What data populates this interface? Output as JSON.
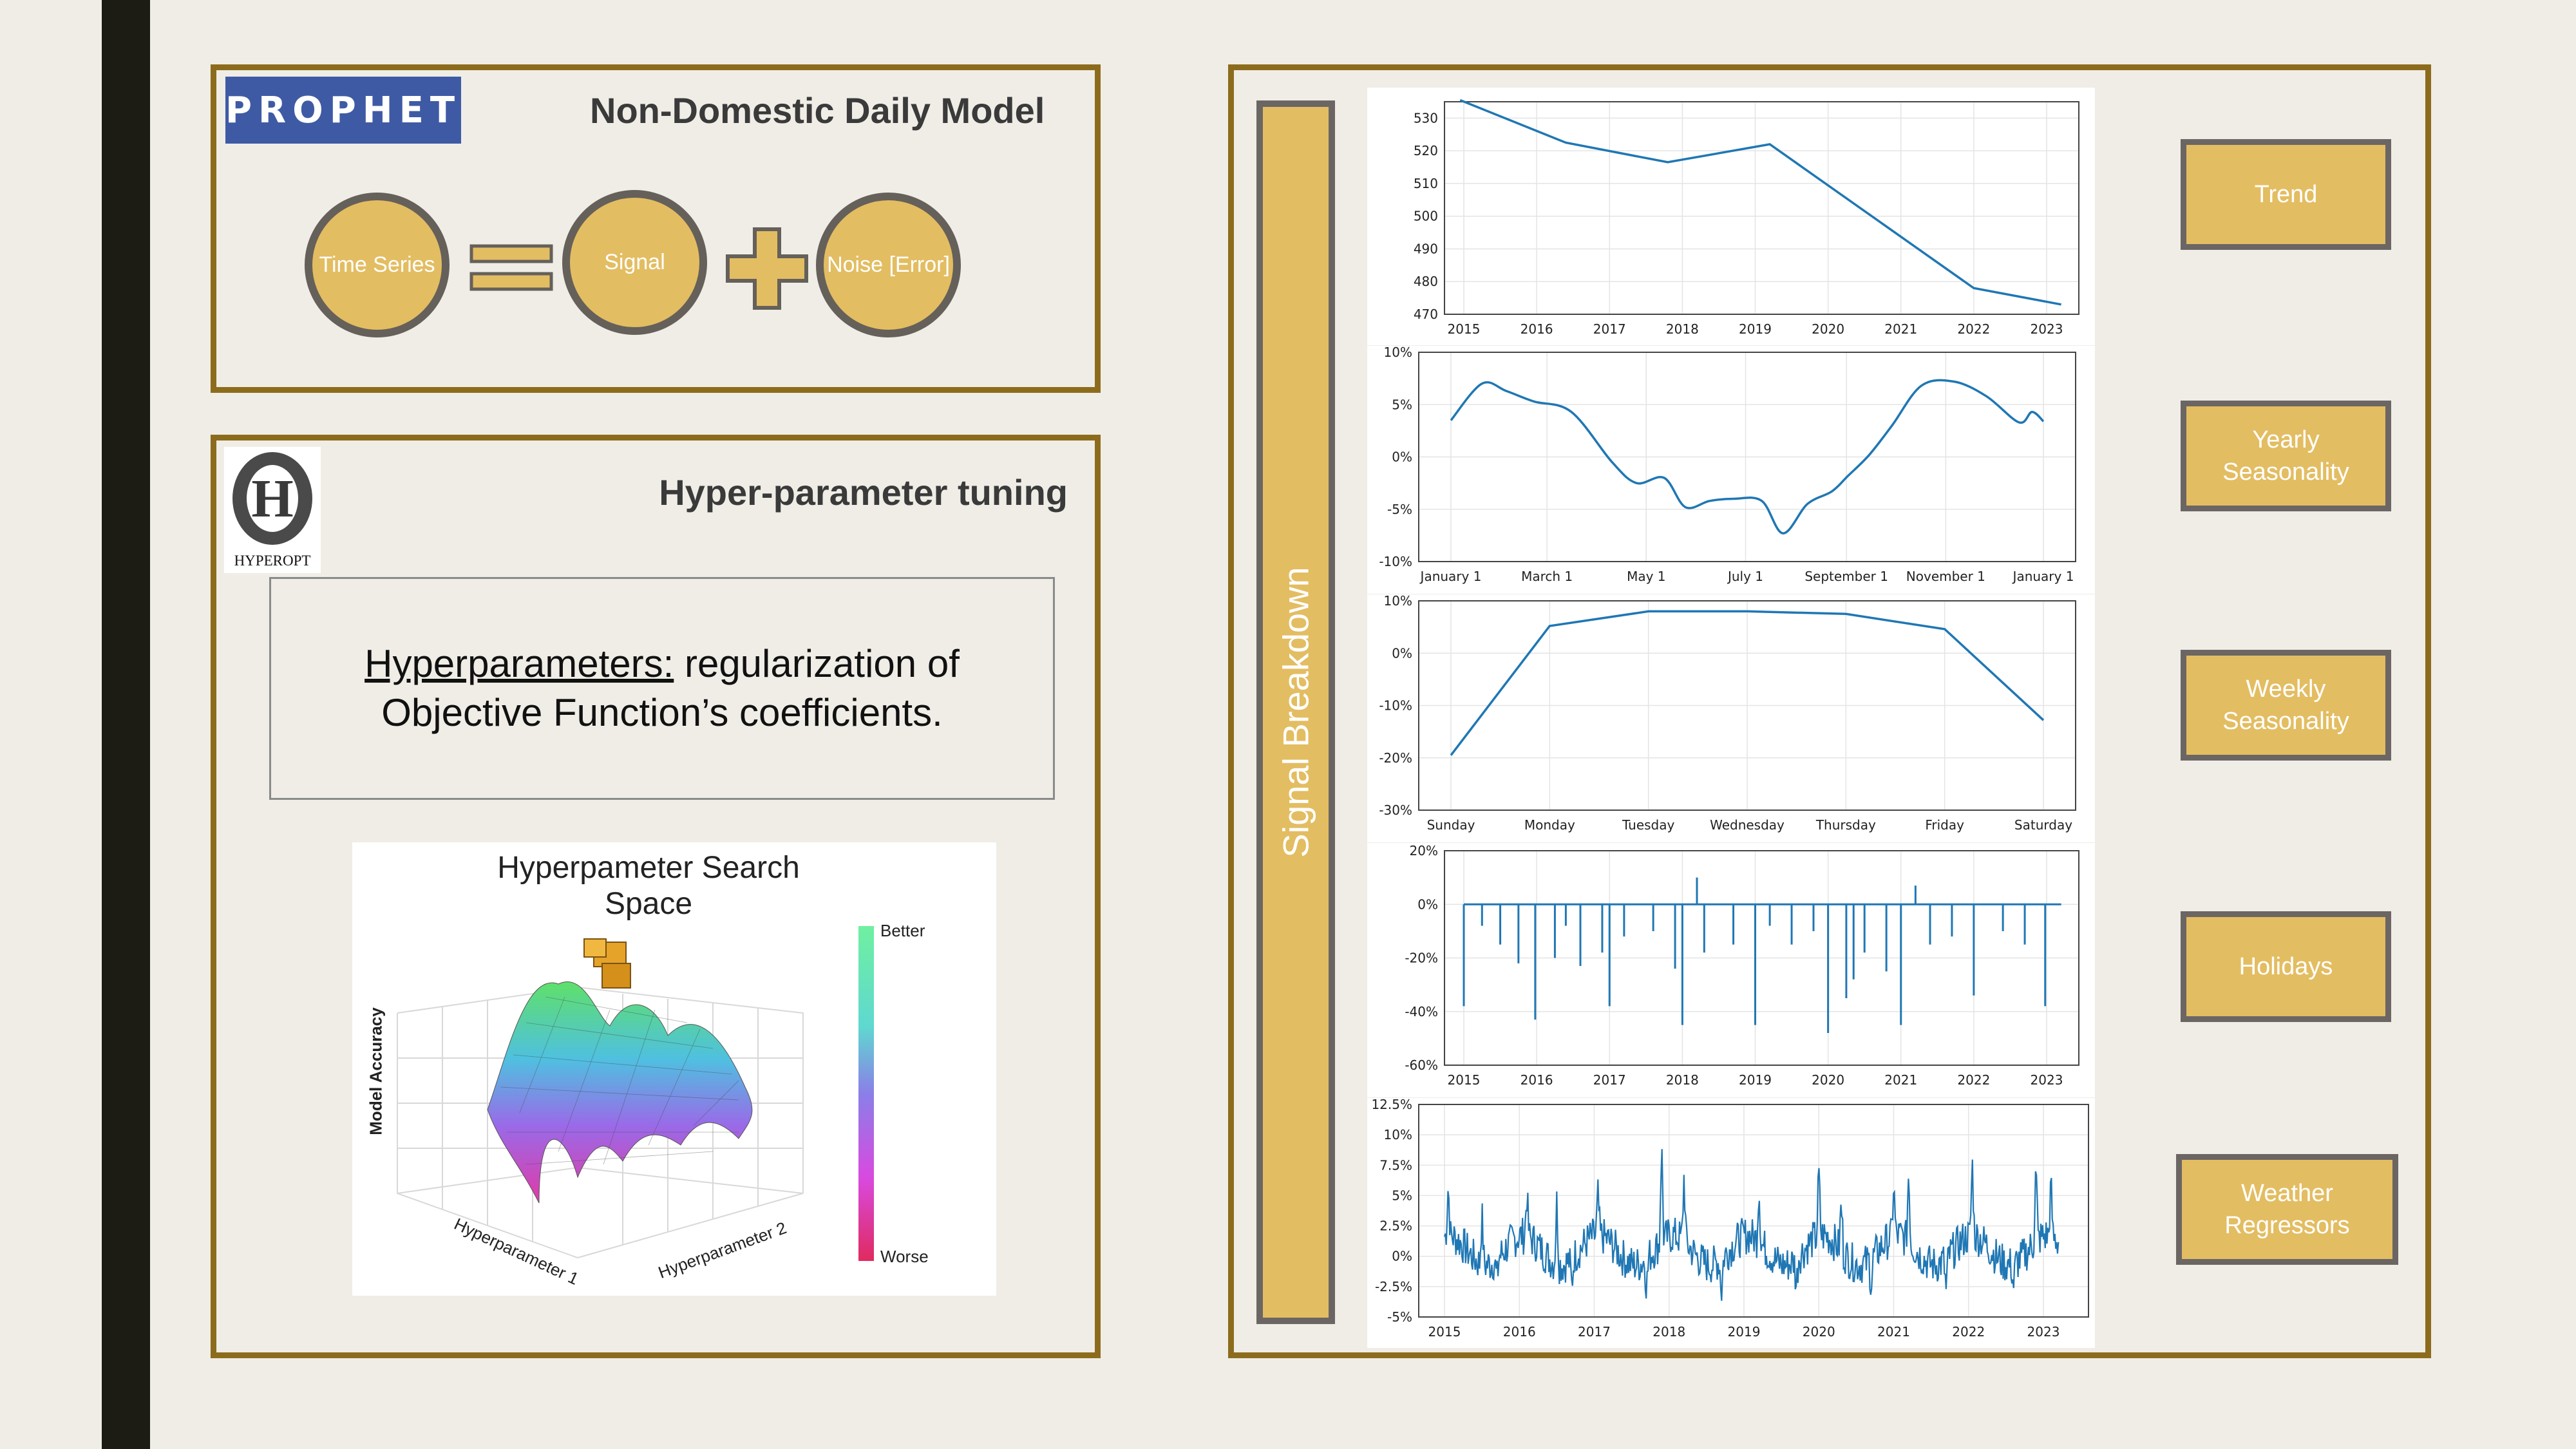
{
  "prophet_panel": {
    "logo_text": "PROPHET",
    "title": "Non-Domestic Daily Model",
    "circles": {
      "time_series": "Time Series",
      "signal": "Signal",
      "noise": "Noise [Error]"
    }
  },
  "hyperopt_panel": {
    "logo_letter": "H",
    "logo_text": "HYPEROPT",
    "title": "Hyper-parameter tuning",
    "definition_term": "Hyperparameters:",
    "definition_text": " regularization of Objective Function’s coefficients.",
    "search_space": {
      "title": "Hyperpameter Search Space",
      "z_axis_label": "Model Accuracy",
      "x_axis_label": "Hyperparameter 1",
      "y_axis_label": "Hyperparameter 2",
      "colorbar_top": "Better",
      "colorbar_bottom": "Worse"
    }
  },
  "signal_panel": {
    "bar_label": "Signal Breakdown",
    "components": [
      "Trend",
      "Yearly Seasonality",
      "Weekly Seasonality",
      "Holidays",
      "Weather Regressors"
    ]
  },
  "colors": {
    "accent_gold": "#e3bd62",
    "frame_brown": "#8c6c1c",
    "border_gray": "#6b6663",
    "prophet_blue": "#3f5aa5",
    "plot_line": "#1f77b4"
  },
  "chart_data": [
    {
      "type": "line",
      "name_in_ui": "Trend",
      "x_ticks": [
        "2015",
        "2016",
        "2017",
        "2018",
        "2019",
        "2020",
        "2021",
        "2022",
        "2023"
      ],
      "y_ticks": [
        "470",
        "480",
        "490",
        "500",
        "510",
        "520",
        "530"
      ],
      "ylim": [
        470,
        535
      ],
      "x": [
        2014.95,
        2016.4,
        2017.8,
        2019.2,
        2022.0,
        2023.2
      ],
      "y": [
        535.5,
        522.5,
        516.5,
        522,
        478,
        473
      ]
    },
    {
      "type": "line",
      "name_in_ui": "Yearly Seasonality",
      "x_ticks": [
        "January 1",
        "March 1",
        "May 1",
        "July 1",
        "September 1",
        "November 1",
        "January 1"
      ],
      "y_ticks": [
        "-10%",
        "-5%",
        "0%",
        "5%",
        "10%"
      ],
      "ylim": [
        -10,
        10
      ],
      "x_day_of_year": [
        1,
        20,
        35,
        52,
        75,
        100,
        115,
        132,
        145,
        160,
        175,
        192,
        205,
        220,
        235,
        245,
        258,
        272,
        290,
        310,
        330,
        350,
        358,
        365
      ],
      "y_percent": [
        3.5,
        7,
        6.3,
        5.3,
        4.3,
        -0.5,
        -2.5,
        -2,
        -4.8,
        -4.2,
        -4,
        -4.2,
        -7.3,
        -4.5,
        -3.3,
        -1.8,
        0.2,
        3,
        6.8,
        7.2,
        5.8,
        3.3,
        4.3,
        3.4
      ]
    },
    {
      "type": "line",
      "name_in_ui": "Weekly Seasonality",
      "x_ticks": [
        "Sunday",
        "Monday",
        "Tuesday",
        "Wednesday",
        "Thursday",
        "Friday",
        "Saturday"
      ],
      "y_ticks": [
        "-30%",
        "-20%",
        "-10%",
        "0%",
        "10%"
      ],
      "ylim": [
        -30,
        10
      ],
      "x": [
        0,
        1,
        2,
        3,
        4,
        5,
        6
      ],
      "y_percent": [
        -19.5,
        5.2,
        8,
        8,
        7.5,
        4.6,
        -12.8
      ]
    },
    {
      "type": "line",
      "name_in_ui": "Holidays",
      "x_ticks": [
        "2015",
        "2016",
        "2017",
        "2018",
        "2019",
        "2020",
        "2021",
        "2022",
        "2023"
      ],
      "y_ticks": [
        "-60%",
        "-40%",
        "-20%",
        "0%",
        "20%"
      ],
      "ylim": [
        -60,
        20
      ],
      "baseline_percent": 0,
      "spikes": [
        {
          "x": 2015.0,
          "y": -38
        },
        {
          "x": 2015.25,
          "y": -8
        },
        {
          "x": 2015.5,
          "y": -15
        },
        {
          "x": 2015.75,
          "y": -22
        },
        {
          "x": 2015.98,
          "y": -43
        },
        {
          "x": 2016.25,
          "y": -20
        },
        {
          "x": 2016.4,
          "y": -8
        },
        {
          "x": 2016.6,
          "y": -23
        },
        {
          "x": 2016.9,
          "y": -18
        },
        {
          "x": 2017.0,
          "y": -38
        },
        {
          "x": 2017.2,
          "y": -12
        },
        {
          "x": 2017.6,
          "y": -10
        },
        {
          "x": 2017.9,
          "y": -24
        },
        {
          "x": 2018.0,
          "y": -45
        },
        {
          "x": 2018.2,
          "y": 10
        },
        {
          "x": 2018.3,
          "y": -18
        },
        {
          "x": 2018.7,
          "y": -15
        },
        {
          "x": 2019.0,
          "y": -45
        },
        {
          "x": 2019.2,
          "y": -8
        },
        {
          "x": 2019.5,
          "y": -15
        },
        {
          "x": 2019.8,
          "y": -10
        },
        {
          "x": 2020.0,
          "y": -48
        },
        {
          "x": 2020.25,
          "y": -35
        },
        {
          "x": 2020.35,
          "y": -28
        },
        {
          "x": 2020.5,
          "y": -18
        },
        {
          "x": 2020.8,
          "y": -25
        },
        {
          "x": 2021.0,
          "y": -45
        },
        {
          "x": 2021.2,
          "y": 7
        },
        {
          "x": 2021.4,
          "y": -15
        },
        {
          "x": 2021.7,
          "y": -12
        },
        {
          "x": 2022.0,
          "y": -34
        },
        {
          "x": 2022.4,
          "y": -10
        },
        {
          "x": 2022.7,
          "y": -15
        },
        {
          "x": 2022.98,
          "y": -38
        }
      ]
    },
    {
      "type": "line",
      "name_in_ui": "Weather Regressors",
      "x_ticks": [
        "2015",
        "2016",
        "2017",
        "2018",
        "2019",
        "2020",
        "2021",
        "2022",
        "2023"
      ],
      "y_ticks": [
        "-5%",
        "-2.5%",
        "0%",
        "2.5%",
        "5%",
        "7.5%",
        "10%",
        "12.5%"
      ],
      "ylim": [
        -5,
        12.5
      ],
      "x_range": [
        2015.0,
        2023.2
      ],
      "peaks": [
        {
          "x": 2015.05,
          "y": 6
        },
        {
          "x": 2015.5,
          "y": 3.5
        },
        {
          "x": 2016.1,
          "y": 5.2
        },
        {
          "x": 2016.5,
          "y": 4.5
        },
        {
          "x": 2017.05,
          "y": 5
        },
        {
          "x": 2017.9,
          "y": 9.5
        },
        {
          "x": 2018.2,
          "y": 6.8
        },
        {
          "x": 2019.2,
          "y": 6
        },
        {
          "x": 2020.0,
          "y": 7
        },
        {
          "x": 2020.3,
          "y": 4.5
        },
        {
          "x": 2021.0,
          "y": 6
        },
        {
          "x": 2021.2,
          "y": 7.2
        },
        {
          "x": 2022.05,
          "y": 7.8
        },
        {
          "x": 2022.9,
          "y": 7.5
        },
        {
          "x": 2023.1,
          "y": 6
        }
      ],
      "troughs": [
        {
          "x": 2015.7,
          "y": -2
        },
        {
          "x": 2016.7,
          "y": -2.5
        },
        {
          "x": 2017.7,
          "y": -2.5
        },
        {
          "x": 2018.7,
          "y": -3
        },
        {
          "x": 2019.7,
          "y": -2.5
        },
        {
          "x": 2020.7,
          "y": -2.5
        },
        {
          "x": 2021.7,
          "y": -3
        },
        {
          "x": 2022.6,
          "y": -2.5
        }
      ]
    }
  ]
}
